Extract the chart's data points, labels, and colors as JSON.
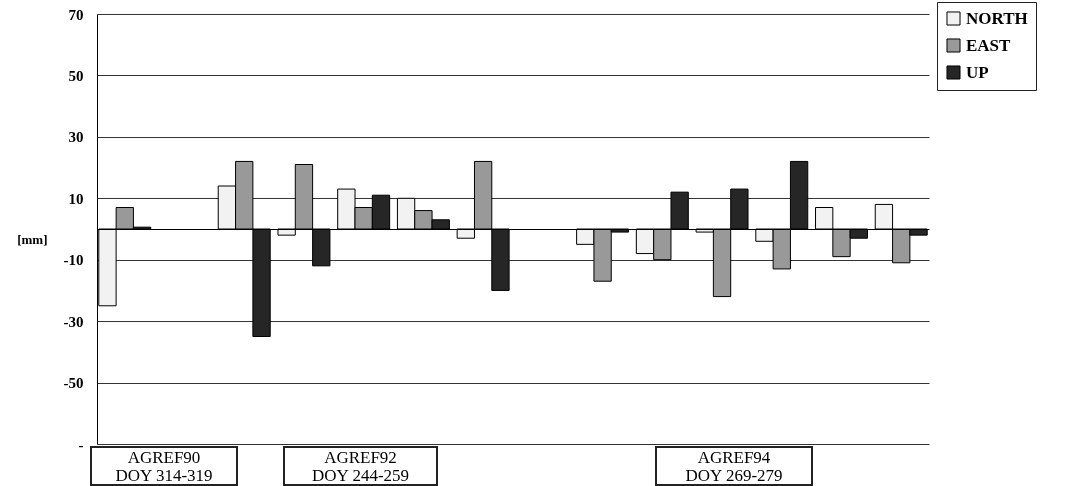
{
  "chart_data": {
    "type": "bar",
    "ylabel": "[mm]",
    "categories": [
      null,
      null,
      null,
      null,
      null,
      null,
      null,
      null,
      null,
      null,
      null,
      null,
      null,
      null
    ],
    "series": [
      {
        "name": "NORTH",
        "color": "#f2f2f2",
        "values": [
          -25,
          null,
          14,
          -2,
          13,
          10,
          -3,
          null,
          -5,
          -8,
          -1,
          -4,
          7,
          8
        ]
      },
      {
        "name": "EAST",
        "color": "#999999",
        "values": [
          7,
          null,
          22,
          21,
          7,
          6,
          22,
          null,
          -17,
          -10,
          -22,
          -13,
          -9,
          -11
        ]
      },
      {
        "name": "UP",
        "color": "#262626",
        "values": [
          0.6,
          null,
          -35,
          -12,
          11,
          3,
          -20,
          null,
          -1,
          12,
          13,
          22,
          -3,
          -2
        ]
      }
    ],
    "ylim": [
      -70,
      70
    ],
    "yticks": [
      {
        "value": -70,
        "label": "-"
      },
      -50,
      -30,
      -10,
      10,
      30,
      50,
      70
    ],
    "grid": "y",
    "legend": "top right",
    "tick_labels": "y",
    "annotations": [
      "AGREF90\nDOY 314-319",
      "AGREF92\nDOY 244-259",
      "AGREF94\nDOY 269-279"
    ]
  }
}
